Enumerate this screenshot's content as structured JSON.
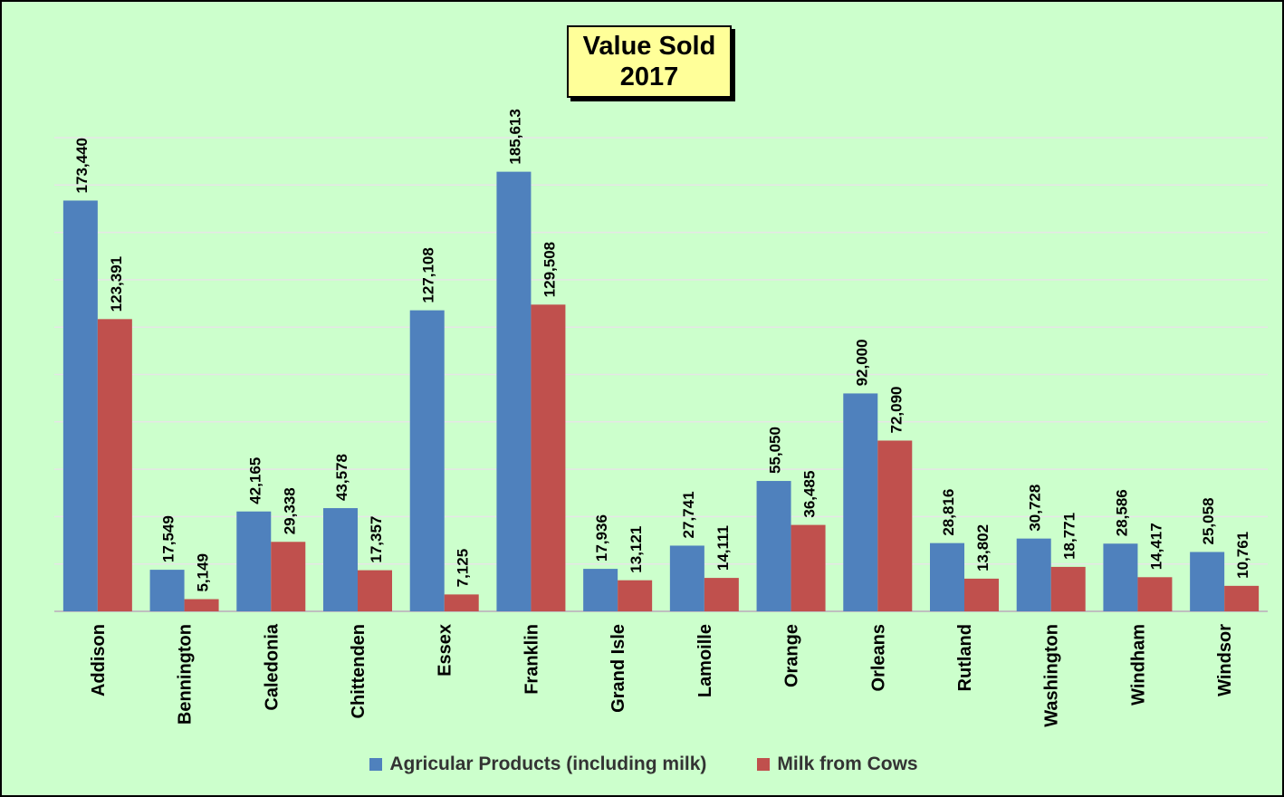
{
  "chart_data": {
    "type": "bar",
    "title": "Value Sold",
    "subtitle": "2017",
    "xlabel": "",
    "ylabel": "",
    "ylim": [
      0,
      200000
    ],
    "y_gridlines": 10,
    "grid": true,
    "y_axis_labels_shown": false,
    "legend_position": "bottom",
    "categories": [
      "Addison",
      "Bennington",
      "Caledonia",
      "Chittenden",
      "Essex",
      "Franklin",
      "Grand Isle",
      "Lamoille",
      "Orange",
      "Orleans",
      "Rutland",
      "Washington",
      "Windham",
      "Windsor"
    ],
    "series": [
      {
        "name": "Agricular Products (including milk)",
        "color": "#4f81bd",
        "values": [
          173440,
          17549,
          42165,
          43578,
          127108,
          185613,
          17936,
          27741,
          55050,
          92000,
          28816,
          30728,
          28586,
          25058
        ],
        "labels": [
          "173,440",
          "17,549",
          "42,165",
          "43,578",
          "127,108",
          "185,613",
          "17,936",
          "27,741",
          "55,050",
          "92,000",
          "28,816",
          "30,728",
          "28,586",
          "25,058"
        ]
      },
      {
        "name": "Milk from Cows",
        "color": "#c0504d",
        "values": [
          123391,
          5149,
          29338,
          17357,
          7125,
          129508,
          13121,
          14111,
          36485,
          72090,
          13802,
          18771,
          14417,
          10761
        ],
        "labels": [
          "123,391",
          "5,149",
          "29,338",
          "17,357",
          "7,125",
          "129,508",
          "13,121",
          "14,111",
          "36,485",
          "72,090",
          "13,802",
          "18,771",
          "14,417",
          "10,761"
        ]
      }
    ]
  },
  "colors": {
    "background": "#ccffcc",
    "title_box": "#ffff99",
    "gridline": "#e6e6e6",
    "axis": "#bfbfbf",
    "label_text": "#000000"
  }
}
